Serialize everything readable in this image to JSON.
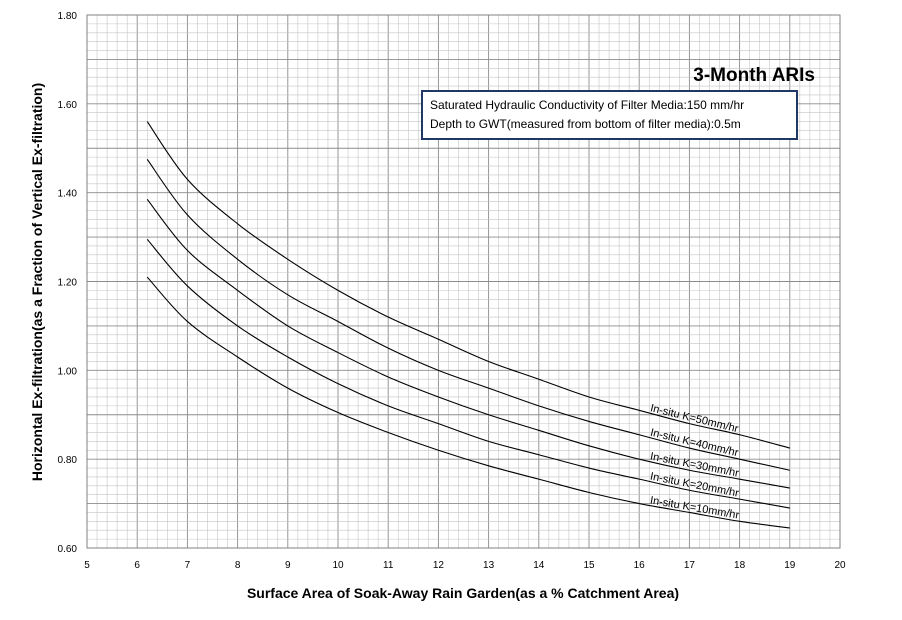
{
  "chart_data": {
    "type": "line",
    "title": "3-Month ARIs",
    "xlabel": "Surface Area of Soak-Away Rain Garden(as a %  Catchment Area)",
    "ylabel": "Horizontal Ex-filtration(as a Fraction of Vertical Ex-filtration)",
    "xlim": [
      5,
      20
    ],
    "ylim": [
      0.6,
      1.8
    ],
    "x_ticks": [
      "5",
      "6",
      "7",
      "8",
      "9",
      "10",
      "11",
      "12",
      "13",
      "14",
      "15",
      "16",
      "17",
      "18",
      "19",
      "20"
    ],
    "y_ticks": [
      "0.60",
      "0.80",
      "1.00",
      "1.20",
      "1.40",
      "1.60",
      "1.80"
    ],
    "grid": true,
    "annotation": {
      "line1": "Saturated Hydraulic Conductivity of Filter Media:150 mm/hr",
      "line2": "Depth to GWT(measured from bottom of filter media):0.5m"
    },
    "x": [
      6.2,
      7,
      8,
      9,
      10,
      11,
      12,
      13,
      14,
      15,
      16,
      17,
      18,
      19
    ],
    "series": [
      {
        "name": "In-situ K=50mm/hr",
        "values": [
          1.56,
          1.43,
          1.33,
          1.25,
          1.18,
          1.12,
          1.07,
          1.02,
          0.98,
          0.94,
          0.91,
          0.88,
          0.855,
          0.825
        ]
      },
      {
        "name": "In-situ K=40mm/hr",
        "values": [
          1.475,
          1.35,
          1.25,
          1.17,
          1.11,
          1.05,
          1.0,
          0.96,
          0.92,
          0.885,
          0.855,
          0.825,
          0.8,
          0.775
        ]
      },
      {
        "name": "In-situ K=30mm/hr",
        "values": [
          1.385,
          1.27,
          1.18,
          1.1,
          1.04,
          0.985,
          0.94,
          0.9,
          0.865,
          0.83,
          0.8,
          0.775,
          0.755,
          0.735
        ]
      },
      {
        "name": "In-situ K=20mm/hr",
        "values": [
          1.295,
          1.19,
          1.1,
          1.03,
          0.97,
          0.92,
          0.88,
          0.84,
          0.81,
          0.78,
          0.755,
          0.73,
          0.71,
          0.69
        ]
      },
      {
        "name": "In-situ K=10mm/hr",
        "values": [
          1.21,
          1.11,
          1.03,
          0.96,
          0.905,
          0.86,
          0.82,
          0.785,
          0.755,
          0.725,
          0.7,
          0.68,
          0.66,
          0.645
        ]
      }
    ]
  }
}
